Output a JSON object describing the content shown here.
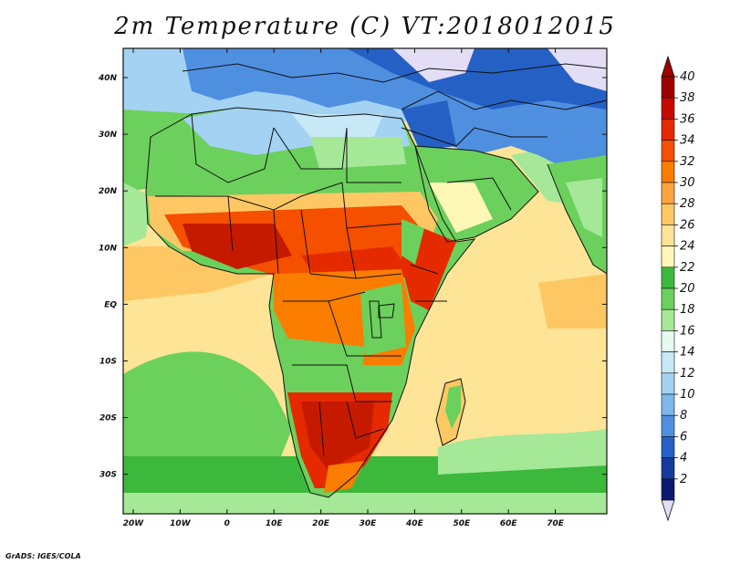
{
  "title": "2m Temperature (C) VT:2018012015",
  "footer": "GrADS: IGES/COLA",
  "map": {
    "lat_labels": [
      "40N",
      "30N",
      "20N",
      "10N",
      "EQ",
      "10S",
      "20S",
      "30S"
    ],
    "lon_labels": [
      "20W",
      "10W",
      "0",
      "10E",
      "20E",
      "30E",
      "40E",
      "50E",
      "60E",
      "70E"
    ],
    "lon_range": [
      -22,
      80
    ],
    "lat_range": [
      -36,
      46
    ]
  },
  "colorbar": {
    "levels": [
      "40",
      "38",
      "36",
      "34",
      "32",
      "30",
      "28",
      "26",
      "24",
      "22",
      "20",
      "18",
      "16",
      "14",
      "12",
      "10",
      "8",
      "6",
      "4",
      "2"
    ],
    "colors": [
      "#9e0000",
      "#c60a00",
      "#e52a00",
      "#f54f00",
      "#fa7d00",
      "#fca540",
      "#fdc864",
      "#fee497",
      "#fff7b5",
      "#3cb93c",
      "#6cd05c",
      "#a4e898",
      "#e6fbf0",
      "#c7e9f7",
      "#a3d2f2",
      "#7eb8ec",
      "#4f8fe0",
      "#2560c4",
      "#143a9a",
      "#0a1a70"
    ],
    "top_arrow_color": "#9e0000",
    "bottom_arrow_color": "#e3def6"
  },
  "palette": {
    "ocean_warm": "#fde497",
    "ocean_cool": "#6cd05c",
    "ocean_south": "#3cb93c",
    "med": "#a3d2f2",
    "hot": "#e54000",
    "very_hot": "#c61a00",
    "cold": "#2560c4",
    "very_cold": "#143a9a"
  }
}
